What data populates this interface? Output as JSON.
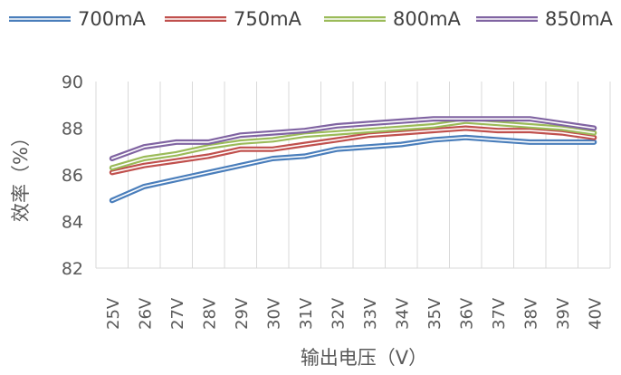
{
  "chart_data": {
    "type": "line",
    "title": "",
    "xlabel": "输出电压（V）",
    "ylabel": "效率（%）",
    "ylim": [
      82,
      90
    ],
    "yticks": [
      82,
      84,
      86,
      88,
      90
    ],
    "grid": "vertical",
    "legend_position": "top",
    "categories": [
      "25V",
      "26V",
      "27V",
      "28V",
      "29V",
      "30V",
      "31V",
      "32V",
      "33V",
      "34V",
      "35V",
      "36V",
      "37V",
      "38V",
      "39V",
      "40V"
    ],
    "series": [
      {
        "name": "700mA",
        "color": "#4a7ebb",
        "values": [
          84.9,
          85.5,
          85.8,
          86.1,
          86.4,
          86.7,
          86.8,
          87.1,
          87.2,
          87.3,
          87.5,
          87.6,
          87.5,
          87.4,
          87.4,
          87.4
        ]
      },
      {
        "name": "750mA",
        "color": "#c0504d",
        "values": [
          86.1,
          86.4,
          86.6,
          86.8,
          87.1,
          87.1,
          87.3,
          87.5,
          87.7,
          87.8,
          87.9,
          88.0,
          87.9,
          87.9,
          87.8,
          87.6
        ]
      },
      {
        "name": "800mA",
        "color": "#9bbb59",
        "values": [
          86.3,
          86.7,
          86.9,
          87.2,
          87.4,
          87.5,
          87.7,
          87.8,
          87.9,
          88.0,
          88.1,
          88.3,
          88.2,
          88.1,
          88.0,
          87.8
        ]
      },
      {
        "name": "850mA",
        "color": "#8064a2",
        "values": [
          86.7,
          87.2,
          87.4,
          87.4,
          87.7,
          87.8,
          87.9,
          88.1,
          88.2,
          88.3,
          88.4,
          88.4,
          88.4,
          88.4,
          88.2,
          88.0
        ]
      }
    ]
  }
}
